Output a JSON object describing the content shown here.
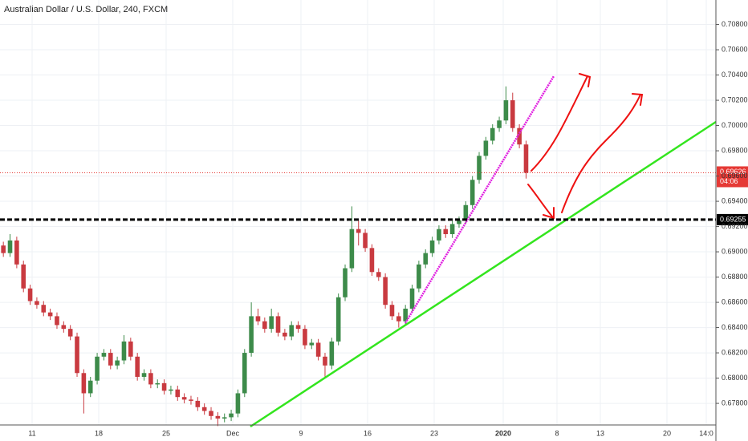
{
  "chart_data": {
    "type": "candlestick",
    "title": "Australian Dollar / U.S. Dollar, 240, FXCM",
    "open": [
      0.6905,
      0.6899,
      0.6909,
      0.689,
      0.6871,
      0.6861,
      0.6858,
      0.6852,
      0.6849,
      0.6842,
      0.6839,
      0.6833,
      0.6804,
      0.6788,
      0.6798,
      0.6817,
      0.682,
      0.681,
      0.6814,
      0.6829,
      0.6817,
      0.6801,
      0.6804,
      0.6795,
      0.6796,
      0.679,
      0.6791,
      0.6785,
      0.6783,
      0.6782,
      0.6777,
      0.6774,
      0.677,
      0.6768,
      0.6769,
      0.6772,
      0.6788,
      0.682,
      0.6849,
      0.6845,
      0.6839,
      0.6849,
      0.6836,
      0.6833,
      0.6842,
      0.6839,
      0.6826,
      0.6828,
      0.6817,
      0.681,
      0.6829,
      0.6864,
      0.6887,
      0.6918,
      0.6915,
      0.6903,
      0.6884,
      0.688,
      0.6858,
      0.6849,
      0.6845,
      0.6855,
      0.6871,
      0.689,
      0.6899,
      0.6909,
      0.6918,
      0.6914,
      0.6922,
      0.6925,
      0.6937,
      0.6957,
      0.6976,
      0.6988,
      0.6998,
      0.7004,
      0.702,
      0.6998,
      0.6985
    ],
    "high": [
      0.6908,
      0.6914,
      0.6912,
      0.6893,
      0.6874,
      0.6864,
      0.6861,
      0.6855,
      0.6852,
      0.6845,
      0.6842,
      0.6836,
      0.6807,
      0.6801,
      0.682,
      0.6823,
      0.6823,
      0.6817,
      0.6834,
      0.6832,
      0.682,
      0.6807,
      0.6807,
      0.6799,
      0.6799,
      0.6794,
      0.6794,
      0.6788,
      0.6786,
      0.6785,
      0.678,
      0.6777,
      0.6773,
      0.6772,
      0.6775,
      0.6791,
      0.6823,
      0.686,
      0.6855,
      0.6848,
      0.6855,
      0.6852,
      0.6839,
      0.6845,
      0.6845,
      0.6842,
      0.6831,
      0.6831,
      0.682,
      0.6832,
      0.6867,
      0.689,
      0.6936,
      0.6925,
      0.6918,
      0.6906,
      0.6887,
      0.6883,
      0.6861,
      0.6852,
      0.6858,
      0.6874,
      0.6893,
      0.6902,
      0.6912,
      0.6921,
      0.6921,
      0.6925,
      0.6928,
      0.694,
      0.696,
      0.6979,
      0.6991,
      0.7001,
      0.7007,
      0.7031,
      0.7026,
      0.7001,
      0.6988
    ],
    "low": [
      0.6896,
      0.6896,
      0.6887,
      0.6868,
      0.6858,
      0.6855,
      0.6849,
      0.6846,
      0.6839,
      0.6836,
      0.683,
      0.6801,
      0.6772,
      0.6785,
      0.6795,
      0.6814,
      0.6807,
      0.6807,
      0.6811,
      0.6814,
      0.6798,
      0.6798,
      0.6792,
      0.6792,
      0.6787,
      0.6787,
      0.6782,
      0.678,
      0.6779,
      0.6774,
      0.6771,
      0.6767,
      0.6762,
      0.6765,
      0.6766,
      0.6769,
      0.6785,
      0.6817,
      0.6842,
      0.6836,
      0.6836,
      0.6833,
      0.683,
      0.683,
      0.6836,
      0.6823,
      0.6823,
      0.6814,
      0.68,
      0.6807,
      0.6826,
      0.6861,
      0.6884,
      0.6905,
      0.69,
      0.6881,
      0.6877,
      0.6855,
      0.6846,
      0.684,
      0.6842,
      0.6852,
      0.6868,
      0.6887,
      0.6896,
      0.6906,
      0.6911,
      0.6911,
      0.6919,
      0.6922,
      0.6934,
      0.6954,
      0.6973,
      0.6985,
      0.6995,
      0.7001,
      0.6995,
      0.6982,
      0.6958
    ],
    "close": [
      0.6899,
      0.6909,
      0.689,
      0.6871,
      0.6861,
      0.6858,
      0.6852,
      0.6849,
      0.6842,
      0.6839,
      0.6833,
      0.6804,
      0.6788,
      0.6798,
      0.6817,
      0.682,
      0.681,
      0.6814,
      0.6829,
      0.6817,
      0.6801,
      0.6804,
      0.6795,
      0.6796,
      0.679,
      0.6791,
      0.6785,
      0.6783,
      0.6782,
      0.6777,
      0.6774,
      0.677,
      0.6768,
      0.6769,
      0.6772,
      0.6788,
      0.682,
      0.6849,
      0.6845,
      0.6839,
      0.6849,
      0.6836,
      0.6833,
      0.6842,
      0.6839,
      0.6826,
      0.6828,
      0.6817,
      0.681,
      0.6829,
      0.6864,
      0.6887,
      0.6918,
      0.6915,
      0.6903,
      0.6884,
      0.688,
      0.6858,
      0.6849,
      0.6845,
      0.6855,
      0.6871,
      0.689,
      0.6899,
      0.6909,
      0.6918,
      0.6914,
      0.6922,
      0.6925,
      0.6937,
      0.6957,
      0.6976,
      0.6988,
      0.6998,
      0.7004,
      0.702,
      0.6998,
      0.6985,
      0.69626
    ],
    "up_color": "#3d8b4a",
    "down_color": "#c93a40",
    "ylim": [
      0.67629,
      0.70994
    ],
    "yticks": [
      {
        "value": 0.678,
        "label": "0.67800"
      },
      {
        "value": 0.68,
        "label": "0.68000"
      },
      {
        "value": 0.682,
        "label": "0.68200"
      },
      {
        "value": 0.684,
        "label": "0.68400"
      },
      {
        "value": 0.686,
        "label": "0.68600"
      },
      {
        "value": 0.688,
        "label": "0.68800"
      },
      {
        "value": 0.69,
        "label": "0.69000"
      },
      {
        "value": 0.692,
        "label": "0.69200"
      },
      {
        "value": 0.694,
        "label": "0.69400"
      },
      {
        "value": 0.696,
        "label": "0.69600"
      },
      {
        "value": 0.698,
        "label": "0.69800"
      },
      {
        "value": 0.7,
        "label": "0.70000"
      },
      {
        "value": 0.702,
        "label": "0.70200"
      },
      {
        "value": 0.704,
        "label": "0.70400"
      },
      {
        "value": 0.706,
        "label": "0.70600"
      },
      {
        "value": 0.708,
        "label": "0.70800"
      }
    ],
    "xtick_labels": [
      "11",
      "18",
      "25",
      "Dec",
      "9",
      "16",
      "23",
      "2020",
      "8",
      "13",
      "20",
      "14:0"
    ],
    "grid": true,
    "price_line": {
      "value": 0.69626,
      "label": "0.69626",
      "timer": "04:06",
      "color": "#e53935"
    },
    "level_line": {
      "value": 0.69255,
      "label": "0.69255",
      "color": "#000000"
    }
  }
}
